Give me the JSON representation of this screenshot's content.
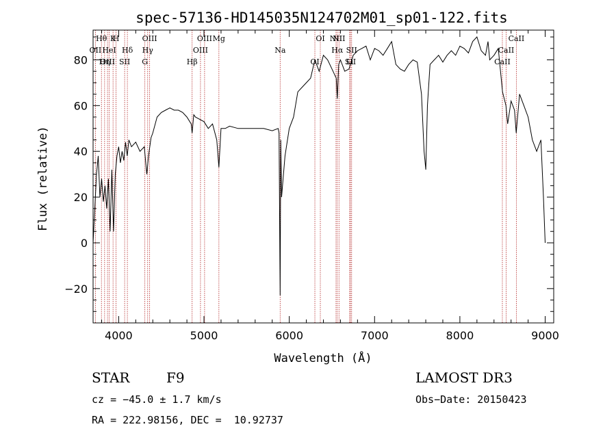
{
  "chart_data": {
    "type": "line",
    "title": "spec-57136-HD145035N124702M01_sp01-122.fits",
    "xlabel": "Wavelength (Å)",
    "ylabel": "Flux (relative)",
    "xlim": [
      3700,
      9100
    ],
    "ylim": [
      -35,
      93
    ],
    "xticks": [
      4000,
      5000,
      6000,
      7000,
      8000,
      9000
    ],
    "yticks": [
      -20,
      0,
      20,
      40,
      60,
      80
    ],
    "grid": false,
    "series": [
      {
        "x": [
          3700,
          3720,
          3740,
          3760,
          3780,
          3800,
          3820,
          3840,
          3860,
          3880,
          3900,
          3920,
          3940,
          3960,
          3980,
          4000,
          4020,
          4040,
          4060,
          4080,
          4100,
          4120,
          4150,
          4200,
          4250,
          4300,
          4330,
          4350,
          4380,
          4400,
          4450,
          4500,
          4550,
          4600,
          4650,
          4700,
          4750,
          4800,
          4850,
          4861,
          4880,
          4900,
          4950,
          5000,
          5050,
          5100,
          5150,
          5175,
          5200,
          5250,
          5300,
          5400,
          5500,
          5600,
          5700,
          5800,
          5870,
          5880,
          5893,
          5900,
          5910,
          5950,
          6000,
          6050,
          6100,
          6150,
          6200,
          6250,
          6300,
          6350,
          6400,
          6450,
          6500,
          6550,
          6563,
          6580,
          6600,
          6650,
          6700,
          6750,
          6800,
          6850,
          6900,
          6950,
          7000,
          7050,
          7100,
          7150,
          7200,
          7250,
          7300,
          7350,
          7400,
          7450,
          7500,
          7550,
          7580,
          7600,
          7620,
          7650,
          7700,
          7750,
          7800,
          7850,
          7900,
          7950,
          8000,
          8050,
          8100,
          8150,
          8200,
          8250,
          8300,
          8330,
          8350,
          8400,
          8450,
          8500,
          8540,
          8560,
          8600,
          8640,
          8660,
          8700,
          8750,
          8800,
          8850,
          8900,
          8950,
          8980,
          9000
        ],
        "y": [
          0,
          15,
          30,
          38,
          20,
          28,
          18,
          25,
          15,
          28,
          5,
          32,
          5,
          30,
          38,
          42,
          35,
          40,
          36,
          44,
          38,
          45,
          42,
          44,
          40,
          42,
          30,
          38,
          46,
          48,
          55,
          57,
          58,
          59,
          58,
          58,
          57,
          55,
          52,
          48,
          56,
          55,
          54,
          53,
          50,
          52,
          45,
          33,
          50,
          50,
          51,
          50,
          50,
          50,
          50,
          49,
          50,
          48,
          -23,
          45,
          20,
          38,
          50,
          55,
          66,
          68,
          70,
          72,
          80,
          75,
          82,
          80,
          76,
          72,
          63,
          78,
          80,
          75,
          76,
          82,
          84,
          85,
          86,
          80,
          85,
          84,
          82,
          85,
          88,
          78,
          76,
          75,
          78,
          80,
          79,
          65,
          40,
          32,
          60,
          78,
          80,
          82,
          79,
          82,
          84,
          82,
          86,
          85,
          83,
          88,
          90,
          84,
          82,
          88,
          80,
          82,
          85,
          66,
          60,
          52,
          62,
          58,
          48,
          65,
          60,
          55,
          45,
          40,
          45,
          20,
          0
        ]
      }
    ],
    "annotations": [
      {
        "label": "Hθ",
        "x": 3798
      },
      {
        "label": "OII",
        "x": 3727
      },
      {
        "label": "OIII",
        "x": 3869
      },
      {
        "label": "K",
        "x": 3934
      },
      {
        "label": "HeI",
        "x": 3889
      },
      {
        "label": "Hη",
        "x": 3835
      },
      {
        "label": "H",
        "x": 3969
      },
      {
        "label": "Hδ",
        "x": 4102
      },
      {
        "label": "SII",
        "x": 4070
      },
      {
        "label": "OIII",
        "x": 4363
      },
      {
        "label": "Hγ",
        "x": 4340
      },
      {
        "label": "G",
        "x": 4307
      },
      {
        "label": "OIII",
        "x": 5007
      },
      {
        "label": "OIII",
        "x": 4959
      },
      {
        "label": "Hβ",
        "x": 4861
      },
      {
        "label": "Mg",
        "x": 5175
      },
      {
        "label": "Na",
        "x": 5893
      },
      {
        "label": "OI",
        "x": 6300
      },
      {
        "label": "OI",
        "x": 6364
      },
      {
        "label": "Hα",
        "x": 6563
      },
      {
        "label": "SII",
        "x": 6717
      },
      {
        "label": "NII",
        "x": 6583
      },
      {
        "label": "SII",
        "x": 6731
      },
      {
        "label": "Li",
        "x": 6708
      },
      {
        "label": "NII",
        "x": 6548
      },
      {
        "label": "CaII",
        "x": 8542
      },
      {
        "label": "CaII",
        "x": 8498
      },
      {
        "label": "CaII",
        "x": 8662
      }
    ]
  },
  "info": {
    "type_label": "STAR",
    "subclass": "F9",
    "survey": "LAMOST DR3",
    "cz": "cz = −45.0 ± 1.7 km/s",
    "obs_date": "Obs−Date: 20150423",
    "coords": "RA = 222.98156, DEC =  10.92737"
  },
  "colors": {
    "marker_lines": "#b22222",
    "spectrum": "#000000"
  }
}
